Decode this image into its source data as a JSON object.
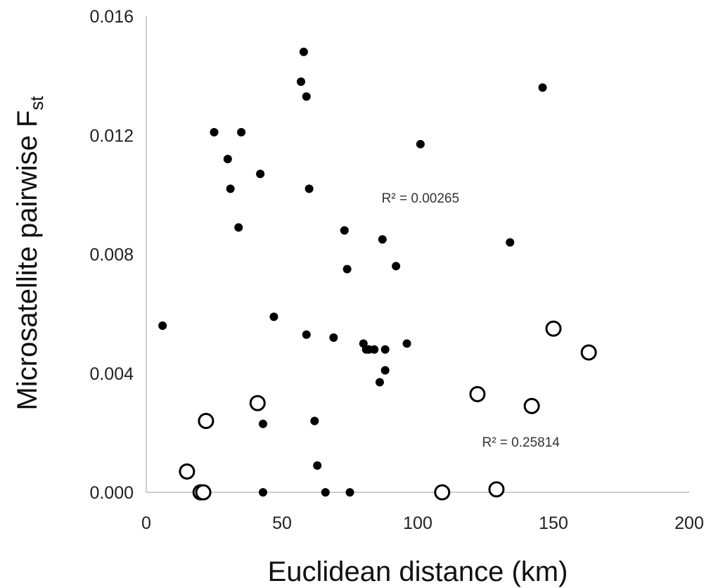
{
  "chart_data": {
    "type": "scatter",
    "title": "",
    "xlabel": "Euclidean distance (km)",
    "ylabel": "Microsatellite pairwise F",
    "ylabel_subscript": "st",
    "xlim": [
      0,
      200
    ],
    "ylim": [
      0,
      0.016
    ],
    "x_ticks": [
      "0",
      "50",
      "100",
      "150",
      "200"
    ],
    "y_ticks": [
      "0.000",
      "0.004",
      "0.008",
      "0.012",
      "0.016"
    ],
    "grid": false,
    "legend": "none",
    "series": [
      {
        "marker": "filled-circle",
        "color": "#000000",
        "points": [
          [
            6,
            0.0056
          ],
          [
            25,
            0.0121
          ],
          [
            30,
            0.0112
          ],
          [
            31,
            0.0102
          ],
          [
            34,
            0.0089
          ],
          [
            35,
            0.0121
          ],
          [
            42,
            0.0107
          ],
          [
            43,
            0.0023
          ],
          [
            43,
            0.0
          ],
          [
            47,
            0.0059
          ],
          [
            57,
            0.0138
          ],
          [
            58,
            0.0148
          ],
          [
            59,
            0.0133
          ],
          [
            59,
            0.0053
          ],
          [
            60,
            0.0102
          ],
          [
            62,
            0.0024
          ],
          [
            63,
            0.0009
          ],
          [
            66,
            0.0
          ],
          [
            69,
            0.0052
          ],
          [
            73,
            0.0088
          ],
          [
            74,
            0.0075
          ],
          [
            75,
            0.0
          ],
          [
            80,
            0.005
          ],
          [
            81,
            0.0048
          ],
          [
            82,
            0.0048
          ],
          [
            84,
            0.0048
          ],
          [
            86,
            0.0037
          ],
          [
            87,
            0.0085
          ],
          [
            88,
            0.0048
          ],
          [
            88,
            0.0041
          ],
          [
            92,
            0.0076
          ],
          [
            96,
            0.005
          ],
          [
            101,
            0.0117
          ],
          [
            134,
            0.0084
          ],
          [
            146,
            0.0136
          ]
        ]
      },
      {
        "marker": "open-circle",
        "color": "#000000",
        "points": [
          [
            15,
            0.0007
          ],
          [
            20,
            0.0
          ],
          [
            21,
            0.0
          ],
          [
            22,
            0.0024
          ],
          [
            41,
            0.003
          ],
          [
            109,
            0.0
          ],
          [
            122,
            0.0033
          ],
          [
            129,
            0.0001
          ],
          [
            142,
            0.0029
          ],
          [
            150,
            0.0055
          ],
          [
            163,
            0.0047
          ]
        ]
      }
    ],
    "annotations": [
      {
        "text": "R² = 0.00265",
        "x": 101,
        "y": 0.0099
      },
      {
        "text": "R² = 0.25814",
        "x": 138,
        "y": 0.0017
      }
    ]
  }
}
